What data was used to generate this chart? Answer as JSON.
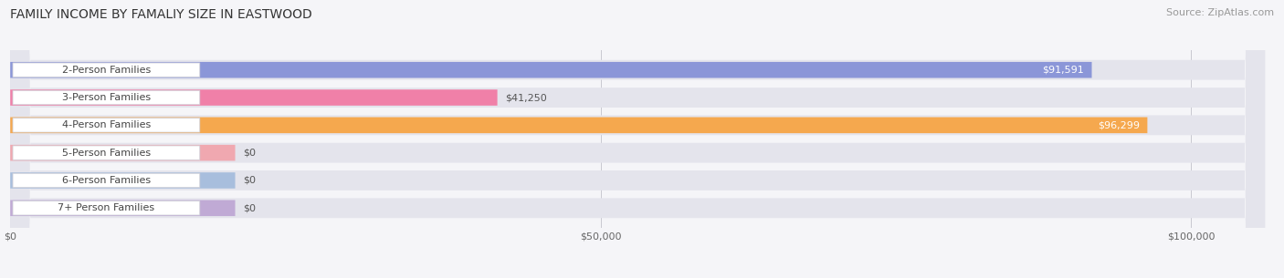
{
  "title": "FAMILY INCOME BY FAMALIY SIZE IN EASTWOOD",
  "source": "Source: ZipAtlas.com",
  "categories": [
    "2-Person Families",
    "3-Person Families",
    "4-Person Families",
    "5-Person Families",
    "6-Person Families",
    "7+ Person Families"
  ],
  "values": [
    91591,
    41250,
    96299,
    0,
    0,
    0
  ],
  "bar_colors": [
    "#8b96d8",
    "#f080a8",
    "#f5a84e",
    "#f0a8b0",
    "#a8bedd",
    "#c0aad5"
  ],
  "value_labels": [
    "$91,591",
    "$41,250",
    "$96,299",
    "$0",
    "$0",
    "$0"
  ],
  "xmax": 107000,
  "xticks": [
    0,
    50000,
    100000
  ],
  "xticklabels": [
    "$0",
    "$50,000",
    "$100,000"
  ],
  "title_fontsize": 10,
  "source_fontsize": 8,
  "bar_label_fontsize": 8,
  "value_fontsize": 8,
  "figsize": [
    14.06,
    3.05
  ],
  "dpi": 100,
  "background_color": "#f5f5f8"
}
